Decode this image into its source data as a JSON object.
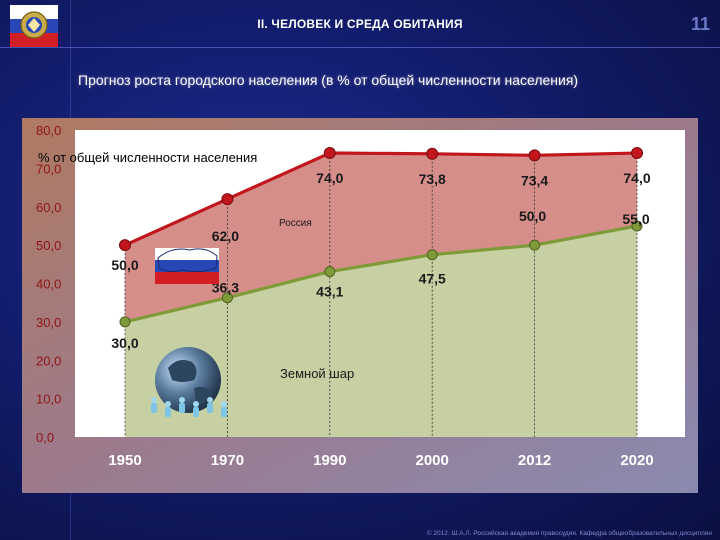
{
  "header": {
    "section_title": "II. ЧЕЛОВЕК И СРЕДА ОБИТАНИЯ",
    "page_number": "11",
    "logo_icon": "academy-emblem-icon"
  },
  "slide": {
    "title": "Прогноз роста городского населения (в % от общей численности населения)"
  },
  "footer": {
    "text": "© 2012. Ш.А.Л. Российская академия правосудия. Кафедра общеобразовательных дисциплин"
  },
  "colors": {
    "russia_line": "#c0161c",
    "russia_fill": "#d68e8a",
    "world_line": "#7f9a38",
    "world_fill": "#c7d0a2",
    "y_labels": "#8f1418",
    "x_labels": "#ffffff"
  },
  "chart_data": {
    "type": "area",
    "ylabel": "% от общей численности населения",
    "ylim": [
      0,
      80
    ],
    "y_ticks": [
      "0,0",
      "10,0",
      "20,0",
      "30,0",
      "40,0",
      "50,0",
      "60,0",
      "70,0",
      "80,0"
    ],
    "categories": [
      "1950",
      "1970",
      "1990",
      "2000",
      "2012",
      "2020"
    ],
    "series": [
      {
        "name": "Россия",
        "values": [
          50.0,
          62.0,
          74.0,
          73.8,
          73.4,
          74.0
        ],
        "labels": [
          "50,0",
          "62,0",
          "74,0",
          "73,8",
          "73,4",
          "74,0"
        ],
        "flag_icon": "russia-map-flag-icon"
      },
      {
        "name": "Земной шар",
        "values": [
          30.0,
          36.3,
          43.1,
          47.5,
          50.0,
          55.0
        ],
        "labels": [
          "30,0",
          "36,3",
          "43,1",
          "47,5",
          "50,0",
          "55,0"
        ],
        "globe_icon": "globe-people-icon"
      }
    ],
    "grid": false,
    "legend": "inline"
  }
}
